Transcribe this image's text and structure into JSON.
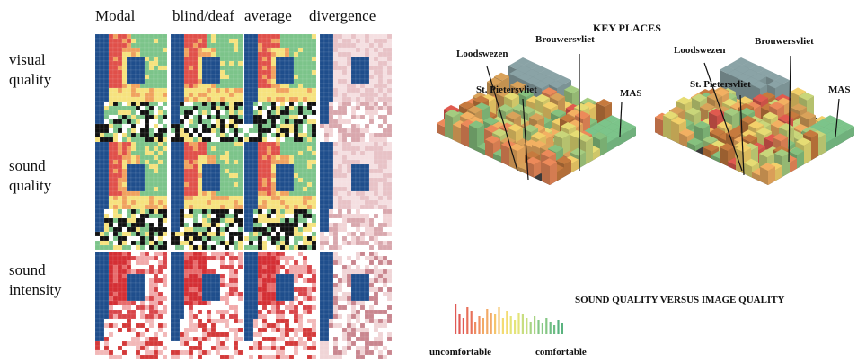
{
  "left_figure": {
    "columns": [
      "Modal",
      "blind/deaf",
      "average",
      "divergence"
    ],
    "rows": [
      {
        "label_line1": "visual",
        "label_line2": "quality",
        "scheme": "quality"
      },
      {
        "label_line1": "sound",
        "label_line2": "quality",
        "scheme": "quality"
      },
      {
        "label_line1": "sound",
        "label_line2": "intensity",
        "scheme": "intensity"
      }
    ]
  },
  "right_figure": {
    "title": "KEY PLACES",
    "places_left": [
      "Loodswezen",
      "Brouwersvliet",
      "St. Pietersvliet",
      "MAS"
    ],
    "places_right": [
      "Loodswezen",
      "Brouwersvliet",
      "St. Pietersvliet",
      "MAS"
    ],
    "subtitle": "SOUND QUALITY VERSUS IMAGE QUALITY",
    "legend_low": "uncomfortable",
    "legend_high": "comfortable",
    "legend_colors": [
      "#e05a55",
      "#e8705a",
      "#ef8e62",
      "#f2aa66",
      "#f5c56b",
      "#f3dc72",
      "#e4e47a",
      "#c8de80",
      "#a8d485",
      "#86c885",
      "#6ebd84",
      "#5ab37f"
    ]
  },
  "colors": {
    "water": "#1f4e8c",
    "red": "#e0504a",
    "orange": "#f0a25e",
    "yellow": "#f6e27e",
    "green": "#7cc48a",
    "black": "#111111",
    "white": "#ffffff",
    "grey_roof": "#8aa3a6"
  }
}
